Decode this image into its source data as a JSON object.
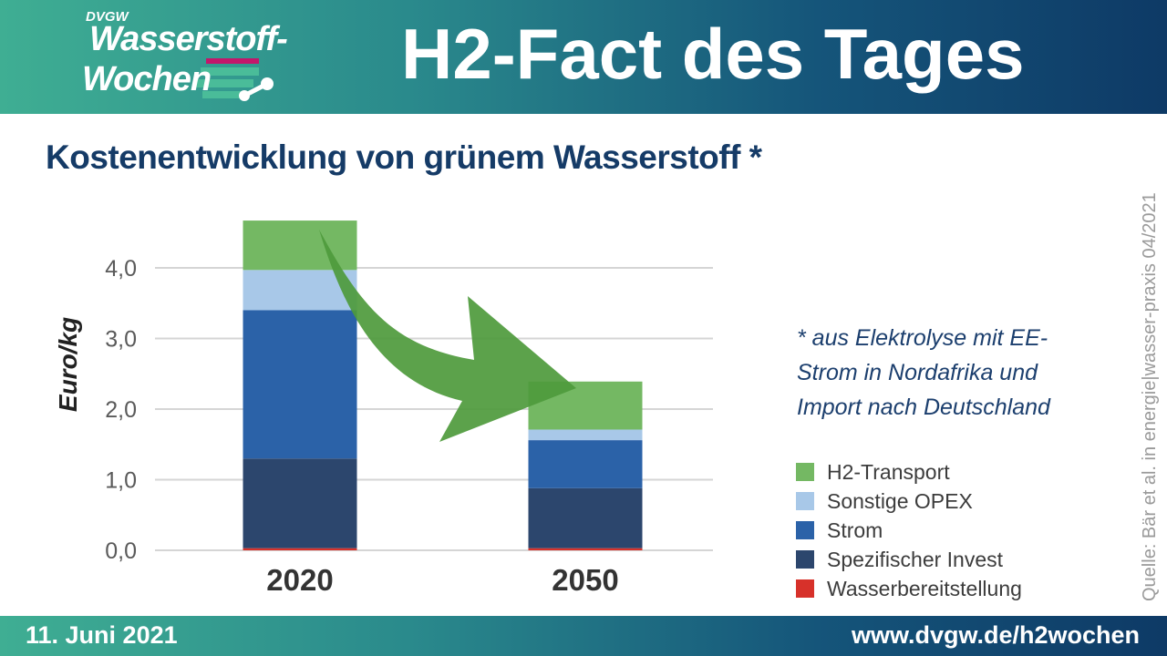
{
  "header": {
    "logo_org": "DVGW",
    "logo_line1": "Wasserstoff-",
    "logo_line2": "Wochen",
    "title": "H2-Fact des Tages"
  },
  "note": "* aus Elektrolyse mit EE-Strom in Nordafrika und Import nach Deutschland",
  "source": "Quelle: Bär et al. in energie|wasser-praxis 04/2021",
  "footer": {
    "date": "11. Juni 2021",
    "url": "www.dvgw.de/h2wochen"
  },
  "colors": {
    "header_start": "#3fae93",
    "header_end": "#0e3a66",
    "arrow": "#4e9a3c"
  },
  "chart_data": {
    "type": "bar",
    "stacked": true,
    "title": "Kostenentwicklung von grünem Wasserstoff *",
    "ylabel": "Euro/kg",
    "xlabel": "",
    "categories": [
      "2020",
      "2050"
    ],
    "yticks": [
      "0,0",
      "1,0",
      "2,0",
      "3,0",
      "4,0"
    ],
    "ylim": [
      0,
      4.7
    ],
    "grid": true,
    "legend_position": "right",
    "series": [
      {
        "name": "Wasserbereitstellung",
        "color": "#d7312a",
        "values": [
          0.03,
          0.03
        ]
      },
      {
        "name": "Spezifischer Invest",
        "color": "#2c466d",
        "values": [
          1.27,
          0.85
        ]
      },
      {
        "name": "Strom",
        "color": "#2b62a8",
        "values": [
          2.1,
          0.68
        ]
      },
      {
        "name": "Sonstige OPEX",
        "color": "#a8c8e8",
        "values": [
          0.57,
          0.15
        ]
      },
      {
        "name": "H2-Transport",
        "color": "#74b863",
        "values": [
          0.7,
          0.68
        ]
      }
    ]
  }
}
